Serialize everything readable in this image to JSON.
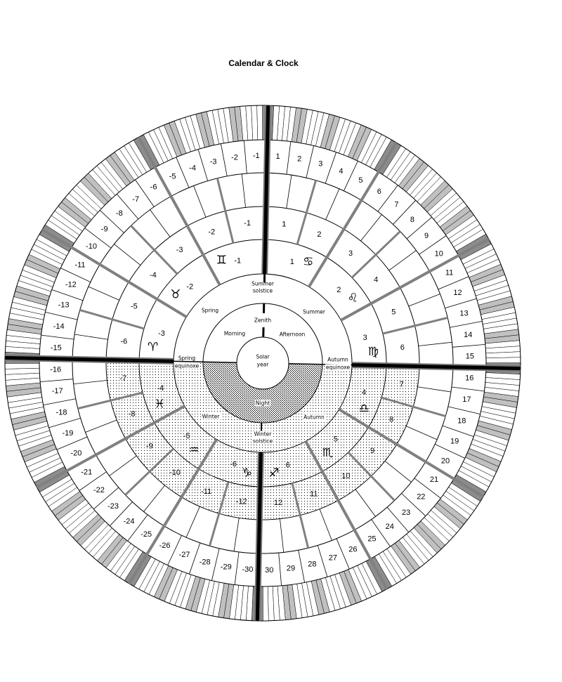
{
  "title": "Calendar & Clock",
  "center": {
    "line1": "Solar",
    "line2": "year"
  },
  "clock": {
    "zenith": "Zenith",
    "morning": "Morning",
    "afternoon": "Afternoon",
    "night": "Night"
  },
  "seasons": {
    "summer_solstice": [
      "Summer",
      "solstice"
    ],
    "winter_solstice": [
      "Winter",
      "solstice"
    ],
    "spring_equinoxe": [
      "Spring",
      "equinoxe"
    ],
    "autumn_equinoxe": [
      "Autumn",
      "equinoxe"
    ],
    "spring": "Spring",
    "summer": "Summer",
    "autumn": "Autumn",
    "winter": "Winter"
  },
  "signs_right": [
    {
      "n": "1",
      "glyph": "♋"
    },
    {
      "n": "2",
      "glyph": "♌"
    },
    {
      "n": "3",
      "glyph": "♍"
    },
    {
      "n": "4",
      "glyph": "♎"
    },
    {
      "n": "5",
      "glyph": "♏"
    },
    {
      "n": "6",
      "glyph": "♐"
    }
  ],
  "signs_left": [
    {
      "n": "-1",
      "glyph": "♊"
    },
    {
      "n": "-2",
      "glyph": "♉"
    },
    {
      "n": "-3",
      "glyph": "♈"
    },
    {
      "n": "-4",
      "glyph": "♓"
    },
    {
      "n": "-5",
      "glyph": "♒"
    },
    {
      "n": "-6",
      "glyph": "♑"
    }
  ],
  "months_right": [
    "1",
    "2",
    "3",
    "4",
    "5",
    "6",
    "7",
    "8",
    "9",
    "10",
    "11",
    "12"
  ],
  "months_left": [
    "-1",
    "-2",
    "-3",
    "-4",
    "-5",
    "-6",
    "-7",
    "-8",
    "-9",
    "-10",
    "-11",
    "-12"
  ],
  "days_right": [
    "1",
    "2",
    "3",
    "4",
    "5",
    "6",
    "7",
    "8",
    "9",
    "10",
    "11",
    "12",
    "13",
    "14",
    "15",
    "16",
    "17",
    "18",
    "19",
    "20",
    "21",
    "22",
    "23",
    "24",
    "25",
    "26",
    "27",
    "28",
    "29",
    "30"
  ],
  "days_left": [
    "-1",
    "-2",
    "-3",
    "-4",
    "-5",
    "-6",
    "-7",
    "-8",
    "-9",
    "-10",
    "-11",
    "-12",
    "-13",
    "-14",
    "-15",
    "-16",
    "-17",
    "-18",
    "-19",
    "-20",
    "-21",
    "-22",
    "-23",
    "-24",
    "-25",
    "-26",
    "-27",
    "-28",
    "-29",
    "-30"
  ],
  "colors": {
    "spoke": "#808080",
    "band_light": "#c0c0c0",
    "band_dark": "#8c8c8c",
    "main_line": "#000000"
  }
}
